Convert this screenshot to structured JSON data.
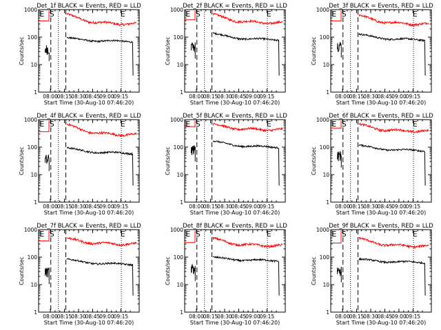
{
  "figure": {
    "panel_count": 9,
    "colors": {
      "events": "#000000",
      "lld": "#ff0000",
      "frame": "#000000",
      "background": "#ffffff"
    }
  },
  "chart_data": {
    "type": "line",
    "scale": "log",
    "ylim": [
      1,
      1000
    ],
    "ylabel": "Counts/sec",
    "xlabel": "Start Time (30-Aug-10 07:46:20)",
    "x_tick_labels": [
      "08:00",
      "08:15",
      "08:30",
      "08:45",
      "09:00",
      "09:15"
    ],
    "xlim_minutes_after_start": [
      -13,
      94
    ],
    "y_tick_labels": [
      "1",
      "10",
      "100",
      "1000"
    ],
    "y_ticks": [
      1,
      10,
      100,
      1000
    ],
    "markers": [
      {
        "text": "E",
        "x_minutes": -12
      },
      {
        "text": "S",
        "x_minutes": -1.5
      },
      {
        "text": "E",
        "x_minutes": 74
      }
    ],
    "vertical_lines": [
      {
        "style": "dashed",
        "x_minutes": 0
      },
      {
        "style": "dotted",
        "x_minutes": 8
      },
      {
        "style": "dashed",
        "x_minutes": 16
      },
      {
        "style": "dotted",
        "x_minutes": 75
      }
    ],
    "series_names": [
      "Events",
      "LLD"
    ],
    "panels": [
      {
        "title": "Det_1f BLACK = Events, RED = LLD",
        "events_level": 70,
        "events_start": 95,
        "lld_level": 300,
        "lld_start": 700,
        "events_burst": 45
      },
      {
        "title": "Det_2f BLACK = Events, RED = LLD",
        "events_level": 80,
        "events_start": 140,
        "lld_level": 330,
        "lld_start": 700,
        "events_burst": 55
      },
      {
        "title": "Det_3f BLACK = Events, RED = LLD",
        "events_level": 80,
        "events_start": 130,
        "lld_level": 300,
        "lld_start": 650,
        "events_burst": 60
      },
      {
        "title": "Det_4f BLACK = Events, RED = LLD",
        "events_level": 60,
        "events_start": 95,
        "lld_level": 280,
        "lld_start": 700,
        "events_burst": 45
      },
      {
        "title": "Det_5f BLACK = Events, RED = LLD",
        "events_level": 100,
        "events_start": 170,
        "lld_level": 430,
        "lld_start": 700,
        "events_burst": 100
      },
      {
        "title": "Det_6f BLACK = Events, RED = LLD",
        "events_level": 75,
        "events_start": 120,
        "lld_level": 380,
        "lld_start": 700,
        "events_burst": 60
      },
      {
        "title": "Det_7f BLACK = Events, RED = LLD",
        "events_level": 55,
        "events_start": 85,
        "lld_level": 300,
        "lld_start": 500,
        "events_burst": 35
      },
      {
        "title": "Det_8f BLACK = Events, RED = LLD",
        "events_level": 75,
        "events_start": 100,
        "lld_level": 260,
        "lld_start": 500,
        "events_burst": 45
      },
      {
        "title": "Det_9f BLACK = Events, RED = LLD",
        "events_level": 65,
        "events_start": 85,
        "lld_level": 250,
        "lld_start": 500,
        "events_burst": 40
      }
    ]
  }
}
